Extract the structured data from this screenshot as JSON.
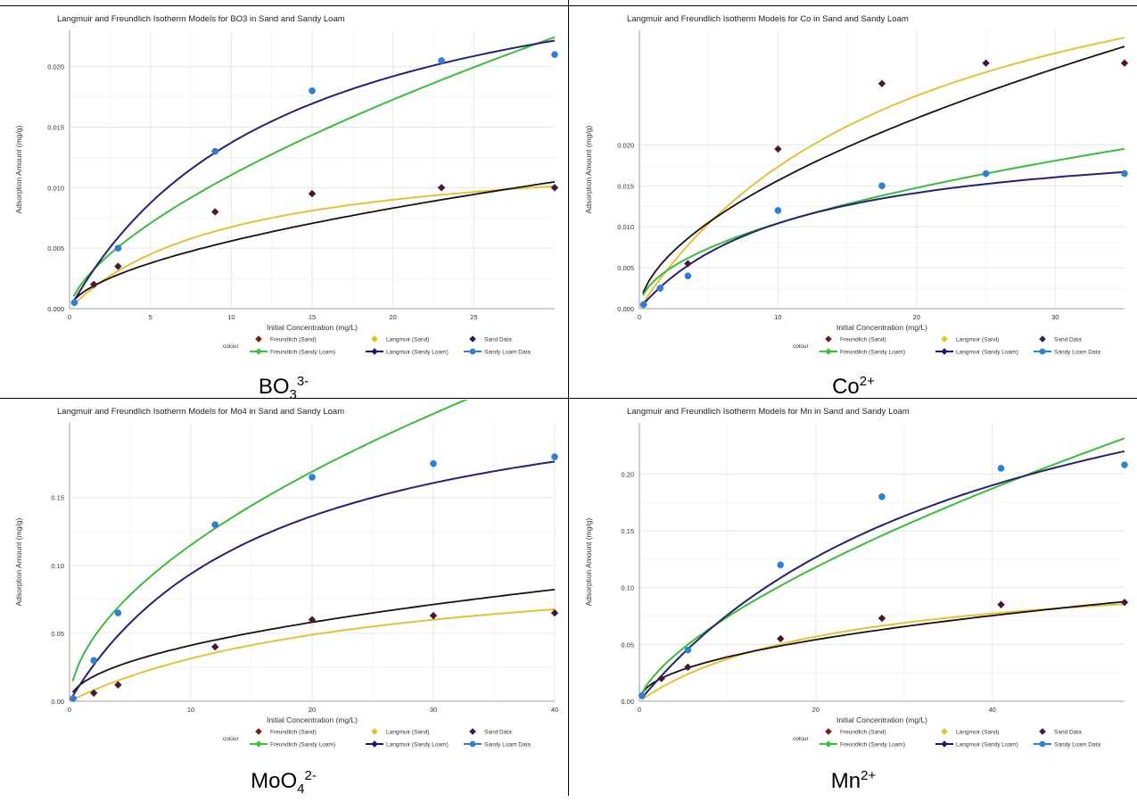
{
  "legend": {
    "title": "colour",
    "items": [
      {
        "label": "Freundlich (Sand)",
        "color": "#7a1b1b",
        "marker": "diamond"
      },
      {
        "label": "Langmuir (Sand)",
        "color": "#e8c020",
        "marker": "diamond"
      },
      {
        "label": "Sand Data",
        "color": "#3d1a5b",
        "marker": "diamond"
      },
      {
        "label": "Freundlich (Sandy Loam)",
        "color": "#3fbf3f",
        "marker": "diamond"
      },
      {
        "label": "Langmuir (Sandy Loam)",
        "color": "#1a1a70",
        "marker": "diamond"
      },
      {
        "label": "Sandy Loam Data",
        "color": "#2f80d0",
        "marker": "circle"
      }
    ]
  },
  "line_colors": {
    "freundlich_sand": "#1a1010",
    "langmuir_sand": "#e2c23c",
    "freundlich_loam": "#3cba3c",
    "langmuir_loam": "#23236e",
    "sand_points": "#4a1638",
    "loam_points": "#2f7fd2"
  },
  "chart_data": [
    {
      "type": "scatter",
      "title": "Langmuir and Freundlich Isotherm Models for BO3 in Sand and Sandy Loam",
      "caption": {
        "base": "BO",
        "sub": "3",
        "sup": "3-"
      },
      "xlabel": "Initial Concentration (mg/L)",
      "ylabel": "Adsorption Amount (mg/g)",
      "xlim": [
        0,
        30
      ],
      "ylim": [
        0,
        0.023
      ],
      "xticks": [
        0,
        5,
        10,
        15,
        20,
        25
      ],
      "xtick_labels": [
        "0",
        "5",
        "10",
        "15",
        "20",
        "25"
      ],
      "yticks": [
        0,
        0.005,
        0.01,
        0.015,
        0.02
      ],
      "ytick_labels": [
        "0.000",
        "0.005",
        "0.010",
        "0.015",
        "0.020"
      ],
      "sand_data": {
        "x": [
          0.3,
          1.5,
          3.0,
          9.0,
          15.0,
          23.0,
          30.0
        ],
        "y": [
          0.0005,
          0.002,
          0.0035,
          0.008,
          0.0095,
          0.01,
          0.01
        ]
      },
      "loam_data": {
        "x": [
          0.3,
          3.0,
          9.0,
          15.0,
          23.0,
          30.0
        ],
        "y": [
          0.0005,
          0.005,
          0.013,
          0.018,
          0.0205,
          0.021
        ]
      },
      "models": {
        "freundlich_sand": {
          "K": 0.0015,
          "n": 1.75
        },
        "langmuir_sand": {
          "qmax": 0.0135,
          "b": 0.1
        },
        "freundlich_loam": {
          "K": 0.0025,
          "n": 1.55
        },
        "langmuir_loam": {
          "qmax": 0.032,
          "b": 0.075
        }
      }
    },
    {
      "type": "scatter",
      "title": "Langmuir and Freundlich Isotherm Models for Co in Sand and Sandy Loam",
      "caption": {
        "base": "Co",
        "sub": "",
        "sup": "2+"
      },
      "xlabel": "Initial Concentration (mg/L)",
      "ylabel": "Adsorption Amount (mg/g)",
      "xlim": [
        0,
        35
      ],
      "ylim": [
        0,
        0.034
      ],
      "xticks": [
        0,
        10,
        20,
        30
      ],
      "xtick_labels": [
        "0",
        "10",
        "20",
        "30"
      ],
      "yticks": [
        0,
        0.005,
        0.01,
        0.015,
        0.02
      ],
      "ytick_labels": [
        "0.000",
        "0.005",
        "0.010",
        "0.015",
        "0.020"
      ],
      "sand_data": {
        "x": [
          0.3,
          1.5,
          3.5,
          10.0,
          17.5,
          25.0,
          35.0
        ],
        "y": [
          0.0005,
          0.0025,
          0.0055,
          0.0195,
          0.0275,
          0.03,
          0.03
        ]
      },
      "loam_data": {
        "x": [
          0.3,
          1.5,
          3.5,
          10.0,
          17.5,
          25.0,
          35.0
        ],
        "y": [
          0.0005,
          0.0025,
          0.004,
          0.012,
          0.015,
          0.0165,
          0.0165
        ]
      },
      "models": {
        "freundlich_sand": {
          "K": 0.0042,
          "n": 1.75
        },
        "langmuir_sand": {
          "qmax": 0.052,
          "b": 0.05
        },
        "freundlich_loam": {
          "K": 0.0033,
          "n": 2.0
        },
        "langmuir_loam": {
          "qmax": 0.022,
          "b": 0.09
        }
      }
    },
    {
      "type": "scatter",
      "title": "Langmuir and Freundlich Isotherm Models for Mo4 in Sand and Sandy Loam",
      "caption": {
        "base": "MoO",
        "sub": "4",
        "sup": "2-"
      },
      "xlabel": "Initial Concentration (mg/L)",
      "ylabel": "Adsorption Amount (mg/g)",
      "xlim": [
        0,
        40
      ],
      "ylim": [
        0,
        0.205
      ],
      "xticks": [
        0,
        10,
        20,
        30,
        40
      ],
      "xtick_labels": [
        "0",
        "10",
        "20",
        "30",
        "40"
      ],
      "yticks": [
        0,
        0.05,
        0.1,
        0.15
      ],
      "ytick_labels": [
        "0.00",
        "0.05",
        "0.10",
        "0.15"
      ],
      "sand_data": {
        "x": [
          0.3,
          2.0,
          4.0,
          12.0,
          20.0,
          30.0,
          40.0
        ],
        "y": [
          0.002,
          0.006,
          0.012,
          0.04,
          0.06,
          0.063,
          0.065
        ]
      },
      "loam_data": {
        "x": [
          0.3,
          2.0,
          4.0,
          12.0,
          20.0,
          30.0,
          40.0
        ],
        "y": [
          0.002,
          0.03,
          0.065,
          0.13,
          0.165,
          0.175,
          0.18
        ]
      },
      "models": {
        "freundlich_sand": {
          "K": 0.013,
          "n": 2.0
        },
        "langmuir_sand": {
          "qmax": 0.11,
          "b": 0.04
        },
        "freundlich_loam": {
          "K": 0.032,
          "n": 1.8
        },
        "langmuir_loam": {
          "qmax": 0.25,
          "b": 0.06
        }
      }
    },
    {
      "type": "scatter",
      "title": "Langmuir and Freundlich Isotherm Models for Mn in Sand and Sandy Loam",
      "caption": {
        "base": "Mn",
        "sub": "",
        "sup": "2+"
      },
      "xlabel": "Initial Concentration (mg/L)",
      "ylabel": "Adsorption Amount (mg/g)",
      "xlim": [
        0,
        55
      ],
      "ylim": [
        0,
        0.245
      ],
      "xticks": [
        0,
        20,
        40
      ],
      "xtick_labels": [
        "0",
        "20",
        "40"
      ],
      "yticks": [
        0,
        0.05,
        0.1,
        0.15,
        0.2
      ],
      "ytick_labels": [
        "0.00",
        "0.05",
        "0.10",
        "0.15",
        "0.20"
      ],
      "sand_data": {
        "x": [
          0.3,
          2.5,
          5.5,
          16.0,
          27.5,
          41.0,
          55.0
        ],
        "y": [
          0.005,
          0.02,
          0.03,
          0.055,
          0.073,
          0.085,
          0.087
        ]
      },
      "loam_data": {
        "x": [
          0.3,
          5.5,
          16.0,
          27.5,
          41.0,
          55.0
        ],
        "y": [
          0.005,
          0.045,
          0.12,
          0.18,
          0.205,
          0.208
        ]
      },
      "models": {
        "freundlich_sand": {
          "K": 0.013,
          "n": 2.1
        },
        "langmuir_sand": {
          "qmax": 0.12,
          "b": 0.045
        },
        "freundlich_loam": {
          "K": 0.016,
          "n": 1.5
        },
        "langmuir_loam": {
          "qmax": 0.38,
          "b": 0.025
        }
      }
    }
  ]
}
